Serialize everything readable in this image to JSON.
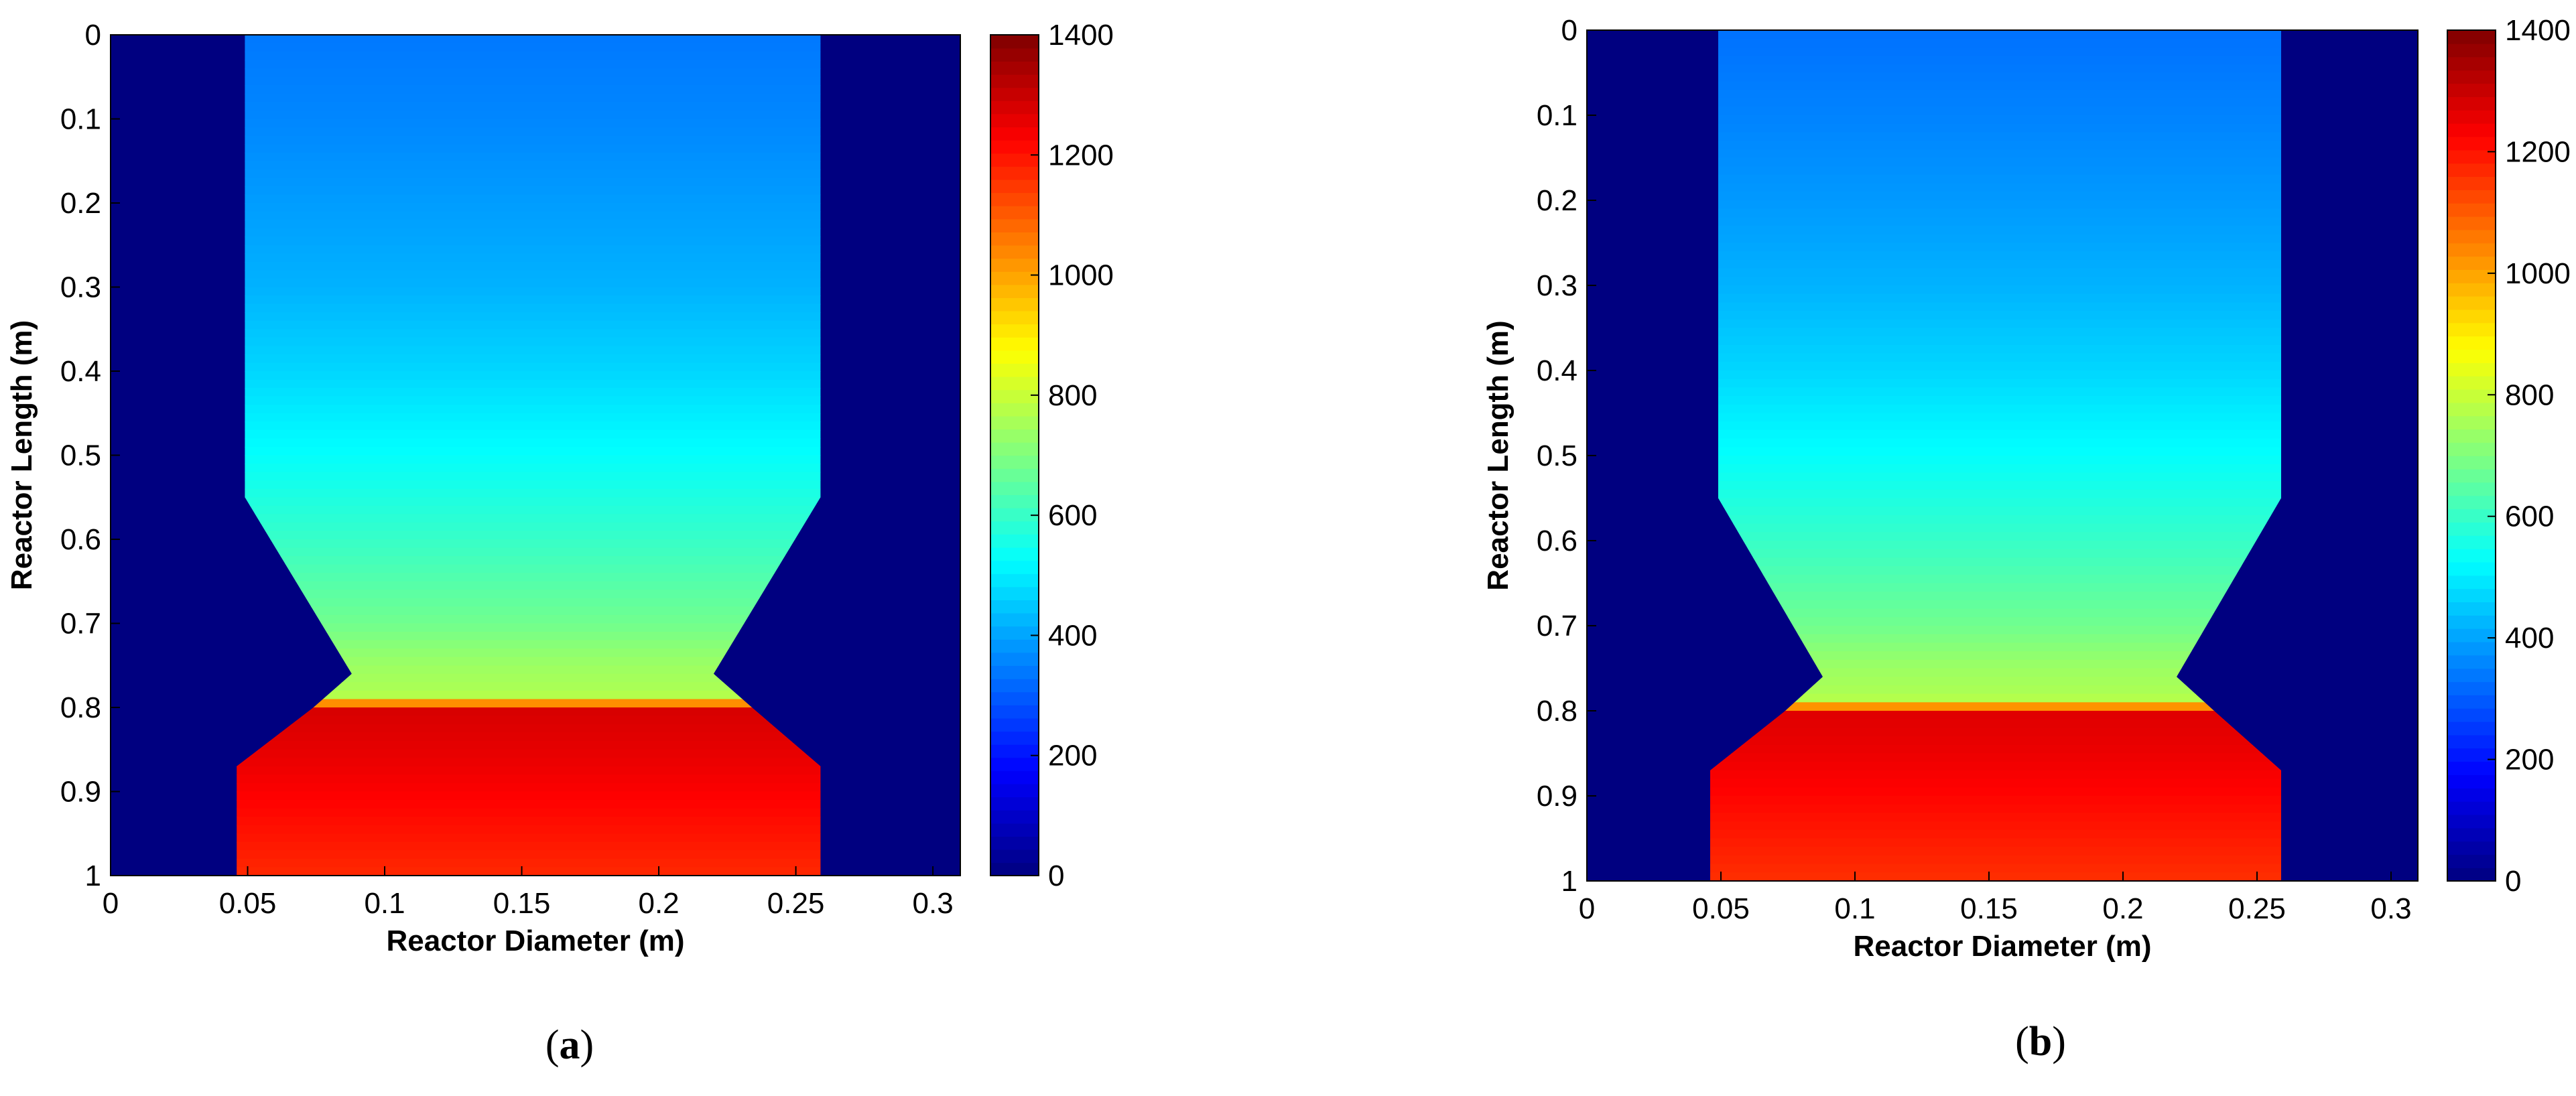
{
  "chart_data": [
    {
      "type": "heatmap",
      "panel": "a",
      "caption": "(a)",
      "xlabel": "Reactor Diameter (m)",
      "ylabel": "Reactor Length (m)",
      "xlim": [
        0,
        0.31
      ],
      "ylim": [
        0,
        1
      ],
      "y_axis_direction": "down",
      "xticks": [
        0,
        0.05,
        0.1,
        0.15,
        0.2,
        0.25,
        0.3
      ],
      "yticks": [
        0,
        0.1,
        0.2,
        0.3,
        0.4,
        0.5,
        0.6,
        0.7,
        0.8,
        0.9,
        1
      ],
      "colorbar": {
        "colormap": "jet",
        "range": [
          0,
          1400
        ],
        "ticks": [
          0,
          200,
          400,
          600,
          800,
          1000,
          1200,
          1400
        ]
      },
      "background_value": 0,
      "reactor_outline": {
        "x": [
          0.049,
          0.259,
          0.259,
          0.22,
          0.234,
          0.259,
          0.259,
          0.046,
          0.046,
          0.074,
          0.088,
          0.049
        ],
        "y": [
          0,
          0,
          0.55,
          0.76,
          0.8,
          0.87,
          1.0,
          1.0,
          0.87,
          0.8,
          0.76,
          0.55
        ]
      },
      "temperature_profile": {
        "y": [
          0,
          0.1,
          0.2,
          0.3,
          0.4,
          0.5,
          0.6,
          0.7,
          0.75,
          0.78,
          0.79,
          0.8,
          0.85,
          0.9,
          0.95,
          1.0
        ],
        "value": [
          340,
          360,
          390,
          420,
          470,
          530,
          600,
          680,
          740,
          760,
          780,
          1280,
          1260,
          1230,
          1200,
          1170
        ]
      }
    },
    {
      "type": "heatmap",
      "panel": "b",
      "caption": "(b)",
      "xlabel": "Reactor Diameter (m)",
      "ylabel": "Reactor Length (m)",
      "xlim": [
        0,
        0.31
      ],
      "ylim": [
        0,
        1
      ],
      "y_axis_direction": "down",
      "xticks": [
        0,
        0.05,
        0.1,
        0.15,
        0.2,
        0.25,
        0.3
      ],
      "yticks": [
        0,
        0.1,
        0.2,
        0.3,
        0.4,
        0.5,
        0.6,
        0.7,
        0.8,
        0.9,
        1
      ],
      "colorbar": {
        "colormap": "jet",
        "range": [
          0,
          1400
        ],
        "ticks": [
          0,
          200,
          400,
          600,
          800,
          1000,
          1200,
          1400
        ]
      },
      "background_value": 0,
      "reactor_outline": {
        "x": [
          0.049,
          0.259,
          0.259,
          0.22,
          0.234,
          0.259,
          0.259,
          0.046,
          0.046,
          0.074,
          0.088,
          0.049
        ],
        "y": [
          0,
          0,
          0.55,
          0.76,
          0.8,
          0.87,
          1.0,
          1.0,
          0.87,
          0.8,
          0.76,
          0.55
        ]
      },
      "temperature_profile": {
        "y": [
          0,
          0.1,
          0.2,
          0.3,
          0.4,
          0.5,
          0.6,
          0.7,
          0.75,
          0.78,
          0.79,
          0.8,
          0.85,
          0.9,
          0.95,
          1.0
        ],
        "value": [
          330,
          355,
          385,
          420,
          470,
          530,
          600,
          680,
          740,
          760,
          780,
          1270,
          1250,
          1220,
          1190,
          1160
        ]
      }
    }
  ]
}
